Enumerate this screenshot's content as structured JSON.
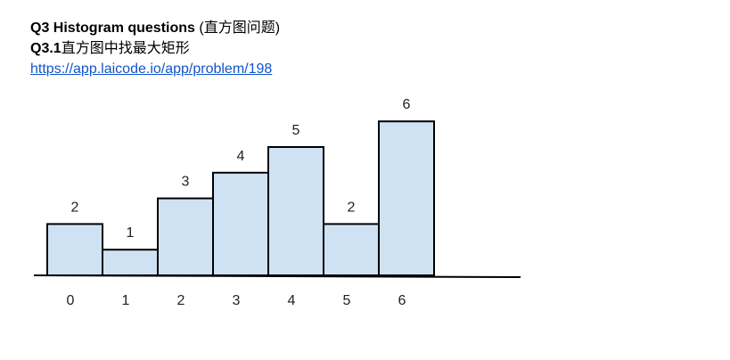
{
  "heading": {
    "bold": "Q3 Histogram questions",
    "normal": " (直方图问题)"
  },
  "subheading": {
    "bold": "Q3.1",
    "normal": "直方图中找最大矩形"
  },
  "link": {
    "text": "https://app.laicode.io/app/problem/198"
  },
  "colors": {
    "bar_fill": "#cfe2f3",
    "bar_stroke": "#000000",
    "link": "#1155cc"
  },
  "chart_data": {
    "type": "bar",
    "categories": [
      "0",
      "1",
      "2",
      "3",
      "4",
      "5",
      "6"
    ],
    "values": [
      2,
      1,
      3,
      4,
      5,
      2,
      6
    ],
    "data_labels": [
      "2",
      "1",
      "3",
      "4",
      "5",
      "2",
      "6"
    ],
    "title": "",
    "xlabel": "",
    "ylabel": "",
    "grid": false
  }
}
